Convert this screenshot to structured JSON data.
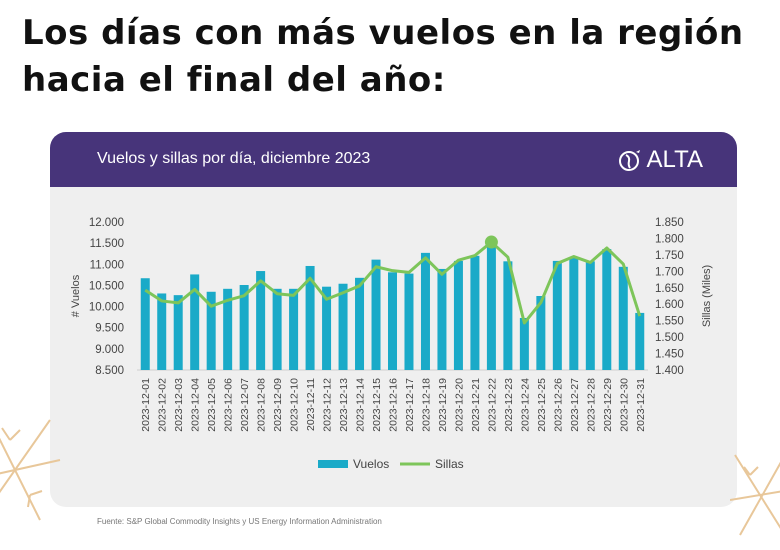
{
  "headline": [
    "Los días con más vuelos en la región",
    "hacia el final del año:"
  ],
  "card": {
    "title": "Vuelos y sillas por día, diciembre 2023",
    "logo_text": "ALTA"
  },
  "footer": "Fuente: S&P Global Commodity Insights y US Energy Information Administration",
  "colors": {
    "header": "#47347a",
    "bars": "#1aaac8",
    "line": "#7dc55a",
    "background": "#efefef"
  },
  "chart_data": {
    "type": "bar+line",
    "title": "Vuelos y sillas por día, diciembre 2023",
    "ylabel_left": "# Vuelos",
    "ylabel_right": "Sillas (Miles)",
    "ylim_left": [
      8500,
      12000
    ],
    "yticks_left": [
      "8.500",
      "9.000",
      "9.500",
      "10.000",
      "10.500",
      "11.000",
      "11.500",
      "12.000"
    ],
    "ylim_right": [
      1400,
      1850
    ],
    "yticks_right": [
      "1.400",
      "1.450",
      "1.500",
      "1.550",
      "1.600",
      "1.650",
      "1.700",
      "1.750",
      "1.800",
      "1.850"
    ],
    "legend_position": "bottom",
    "grid": false,
    "categories": [
      "2023-12-01",
      "2023-12-02",
      "2023-12-03",
      "2023-12-04",
      "2023-12-05",
      "2023-12-06",
      "2023-12-07",
      "2023-12-08",
      "2023-12-09",
      "2023-12-10",
      "2023-12-11",
      "2023-12-12",
      "2023-12-13",
      "2023-12-14",
      "2023-12-15",
      "2023-12-16",
      "2023-12-17",
      "2023-12-18",
      "2023-12-19",
      "2023-12-20",
      "2023-12-21",
      "2023-12-22",
      "2023-12-23",
      "2023-12-24",
      "2023-12-25",
      "2023-12-26",
      "2023-12-27",
      "2023-12-28",
      "2023-12-29",
      "2023-12-30",
      "2023-12-31"
    ],
    "series": [
      {
        "name": "Vuelos",
        "type": "bar",
        "axis": "left",
        "values": [
          10670,
          10310,
          10270,
          10760,
          10350,
          10420,
          10510,
          10840,
          10420,
          10420,
          10960,
          10470,
          10540,
          10680,
          11110,
          10810,
          10780,
          11270,
          10890,
          11080,
          11200,
          11440,
          11070,
          9730,
          10250,
          11080,
          11160,
          11070,
          11360,
          10940,
          9850
        ]
      },
      {
        "name": "Sillas",
        "type": "line",
        "axis": "right",
        "values": [
          1643,
          1610,
          1604,
          1645,
          1594,
          1612,
          1626,
          1671,
          1632,
          1627,
          1679,
          1615,
          1635,
          1656,
          1714,
          1702,
          1697,
          1741,
          1691,
          1734,
          1748,
          1789,
          1743,
          1543,
          1605,
          1724,
          1745,
          1727,
          1771,
          1722,
          1564
        ],
        "highlight_index": 21
      }
    ]
  }
}
